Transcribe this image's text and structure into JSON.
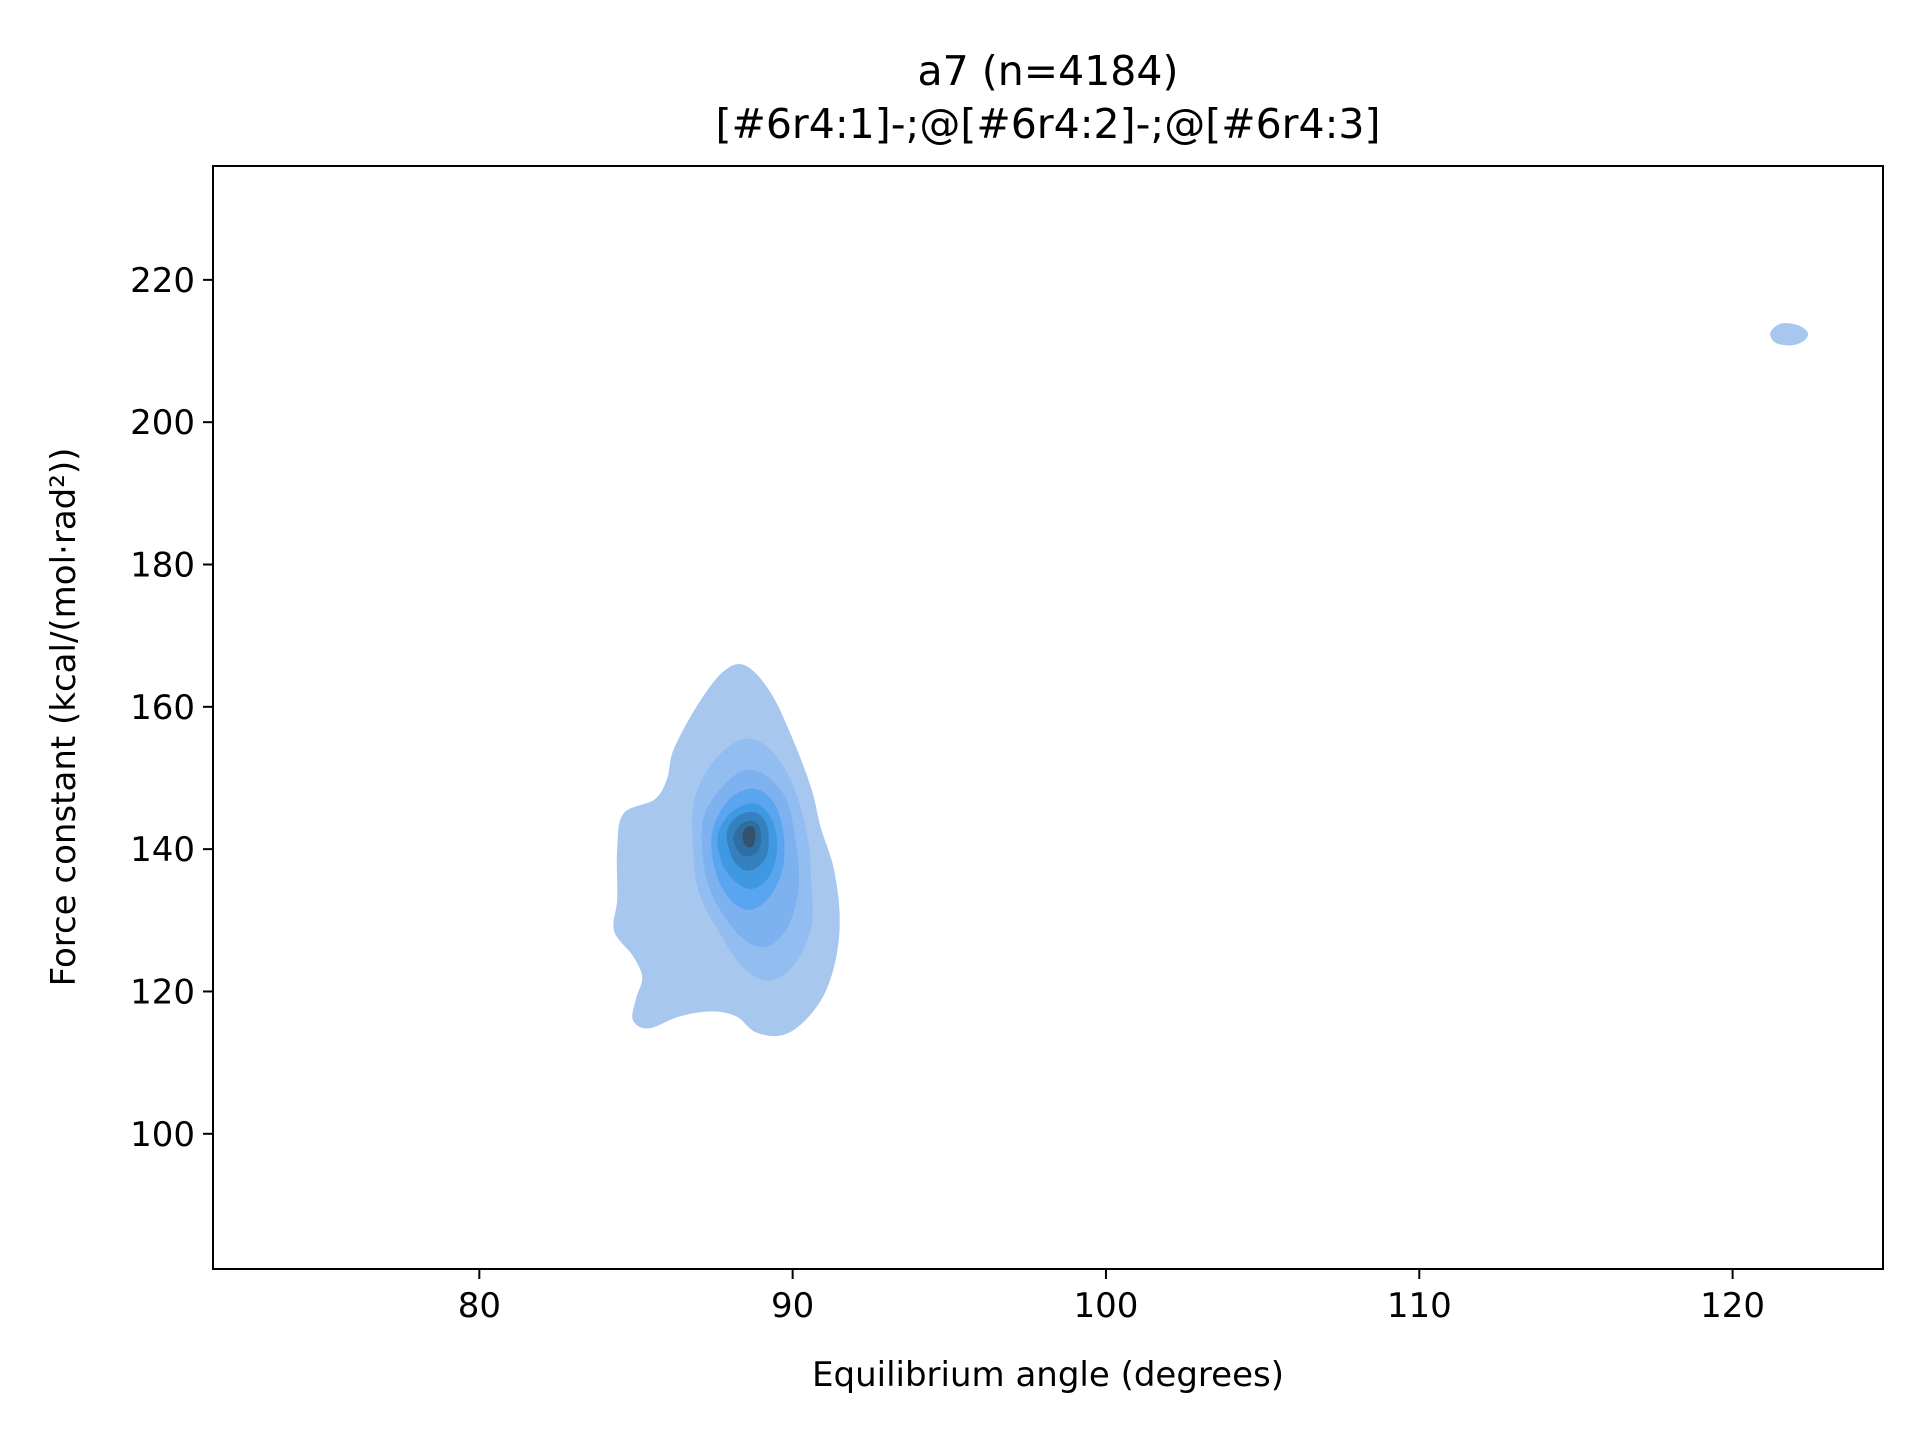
{
  "chart_data": {
    "type": "kde_contour",
    "title": "a7 (n=4184)",
    "subtitle": "[#6r4:1]-;@[#6r4:2]-;@[#6r4:3]",
    "xlabel": "Equilibrium angle (degrees)",
    "ylabel": "Force constant (kcal/(mol·rad²))",
    "xlim": [
      71.5,
      124.8
    ],
    "ylim": [
      81,
      236
    ],
    "xticks": [
      80,
      90,
      100,
      110,
      120
    ],
    "yticks": [
      100,
      120,
      140,
      160,
      180,
      200,
      220
    ],
    "grid": false,
    "levels": [
      {
        "color": "#a8c7ef",
        "polygons": [
          [
            [
              84.4,
              133
            ],
            [
              84.3,
              128.5
            ],
            [
              84.9,
              125
            ],
            [
              85.2,
              122
            ],
            [
              85.0,
              119
            ],
            [
              84.9,
              116
            ],
            [
              85.4,
              114.8
            ],
            [
              86.4,
              116.5
            ],
            [
              87.4,
              117.2
            ],
            [
              88.2,
              116.5
            ],
            [
              88.8,
              114.3
            ],
            [
              89.6,
              113.8
            ],
            [
              90.3,
              115.5
            ],
            [
              91.0,
              119.5
            ],
            [
              91.4,
              125
            ],
            [
              91.5,
              131
            ],
            [
              91.3,
              137.5
            ],
            [
              90.9,
              143
            ],
            [
              90.6,
              148.5
            ],
            [
              90.0,
              155.5
            ],
            [
              89.3,
              162
            ],
            [
              88.5,
              165.8
            ],
            [
              87.8,
              165
            ],
            [
              87.0,
              160.5
            ],
            [
              86.2,
              154
            ],
            [
              86.0,
              150
            ],
            [
              85.6,
              147
            ],
            [
              84.6,
              145
            ],
            [
              84.4,
              140
            ]
          ],
          [
            [
              121.2,
              212.2
            ],
            [
              121.4,
              211.1
            ],
            [
              121.9,
              210.8
            ],
            [
              122.3,
              211.5
            ],
            [
              122.4,
              212.6
            ],
            [
              122.1,
              213.6
            ],
            [
              121.6,
              213.9
            ],
            [
              121.3,
              213.2
            ]
          ]
        ]
      },
      {
        "color": "#92bdf1",
        "polygons": [
          [
            [
              86.8,
              142
            ],
            [
              87.0,
              134
            ],
            [
              87.7,
              128
            ],
            [
              88.4,
              123.5
            ],
            [
              89.2,
              121.5
            ],
            [
              90.0,
              123.5
            ],
            [
              90.6,
              129
            ],
            [
              90.6,
              135
            ],
            [
              90.5,
              141
            ],
            [
              90.1,
              148
            ],
            [
              89.4,
              153.5
            ],
            [
              88.5,
              155.5
            ],
            [
              87.5,
              152.5
            ],
            [
              86.9,
              147.5
            ]
          ]
        ]
      },
      {
        "color": "#7db1f0",
        "polygons": [
          [
            [
              87.1,
              141
            ],
            [
              87.3,
              135
            ],
            [
              87.9,
              130
            ],
            [
              88.6,
              126.8
            ],
            [
              89.3,
              126.5
            ],
            [
              89.9,
              129.5
            ],
            [
              90.2,
              135
            ],
            [
              90.1,
              141
            ],
            [
              89.8,
              147
            ],
            [
              89.1,
              150.5
            ],
            [
              88.4,
              151
            ],
            [
              87.7,
              148.5
            ],
            [
              87.2,
              145
            ]
          ]
        ]
      },
      {
        "color": "#5aa5f0",
        "polygons": [
          [
            [
              87.4,
              141
            ],
            [
              87.6,
              136
            ],
            [
              88.1,
              132.5
            ],
            [
              88.7,
              131.5
            ],
            [
              89.3,
              133.5
            ],
            [
              89.7,
              137.5
            ],
            [
              89.7,
              142.5
            ],
            [
              89.4,
              146.5
            ],
            [
              88.8,
              148.5
            ],
            [
              88.1,
              147.5
            ],
            [
              87.6,
              144.5
            ]
          ]
        ]
      },
      {
        "color": "#3f98e2",
        "polygons": [
          [
            [
              87.6,
              141.5
            ],
            [
              87.8,
              137.5
            ],
            [
              88.3,
              135
            ],
            [
              88.8,
              134.5
            ],
            [
              89.3,
              136.5
            ],
            [
              89.5,
              140
            ],
            [
              89.4,
              143.5
            ],
            [
              89.0,
              146
            ],
            [
              88.5,
              146.3
            ],
            [
              87.9,
              144.5
            ]
          ]
        ]
      },
      {
        "color": "#3580bf",
        "polygons": [
          [
            [
              87.9,
              141.5
            ],
            [
              88.1,
              138.5
            ],
            [
              88.5,
              137
            ],
            [
              88.9,
              137.5
            ],
            [
              89.2,
              139.5
            ],
            [
              89.2,
              143
            ],
            [
              88.9,
              145
            ],
            [
              88.4,
              145
            ],
            [
              88.0,
              143.5
            ]
          ]
        ]
      },
      {
        "color": "#2f6ea2",
        "polygons": [
          [
            [
              88.1,
              141.5
            ],
            [
              88.3,
              139.5
            ],
            [
              88.6,
              139
            ],
            [
              88.9,
              139.8
            ],
            [
              89.0,
              141.5
            ],
            [
              88.9,
              143.5
            ],
            [
              88.6,
              144
            ],
            [
              88.3,
              143.3
            ]
          ]
        ]
      },
      {
        "color": "#34516f",
        "polygons": [
          [
            [
              88.4,
              141.8
            ],
            [
              88.5,
              140.5
            ],
            [
              88.7,
              140.3
            ],
            [
              88.8,
              141.2
            ],
            [
              88.8,
              142.6
            ],
            [
              88.7,
              143.2
            ],
            [
              88.5,
              143
            ]
          ]
        ]
      }
    ]
  }
}
